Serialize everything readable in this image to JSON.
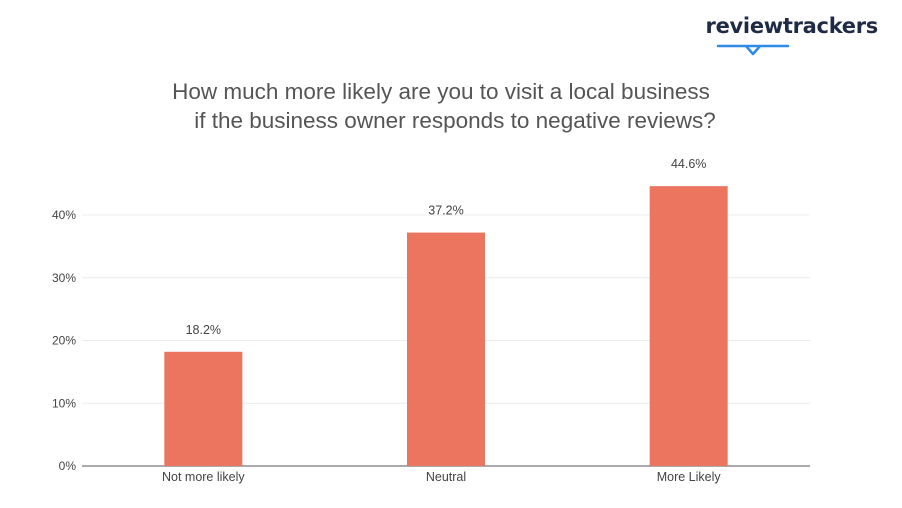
{
  "brand": {
    "name": "reviewtrackers",
    "color": "#1f2a44",
    "accent": "#2e8be6"
  },
  "title": {
    "line1": "How much more likely are you to visit a local business",
    "line2": "if the business owner responds to negative reviews?"
  },
  "chart_data": {
    "type": "bar",
    "categories": [
      "Not more likely",
      "Neutral",
      "More Likely"
    ],
    "values": [
      18.2,
      37.2,
      44.6
    ],
    "data_labels": [
      "18.2%",
      "37.2%",
      "44.6%"
    ],
    "yticks": [
      0,
      10,
      20,
      30,
      40
    ],
    "ytick_labels": [
      "0%",
      "10%",
      "20%",
      "30%",
      "40%"
    ],
    "ylim": [
      0,
      40
    ],
    "grid": true,
    "bar_color": "#ec7560",
    "xlabel": "",
    "ylabel": ""
  }
}
